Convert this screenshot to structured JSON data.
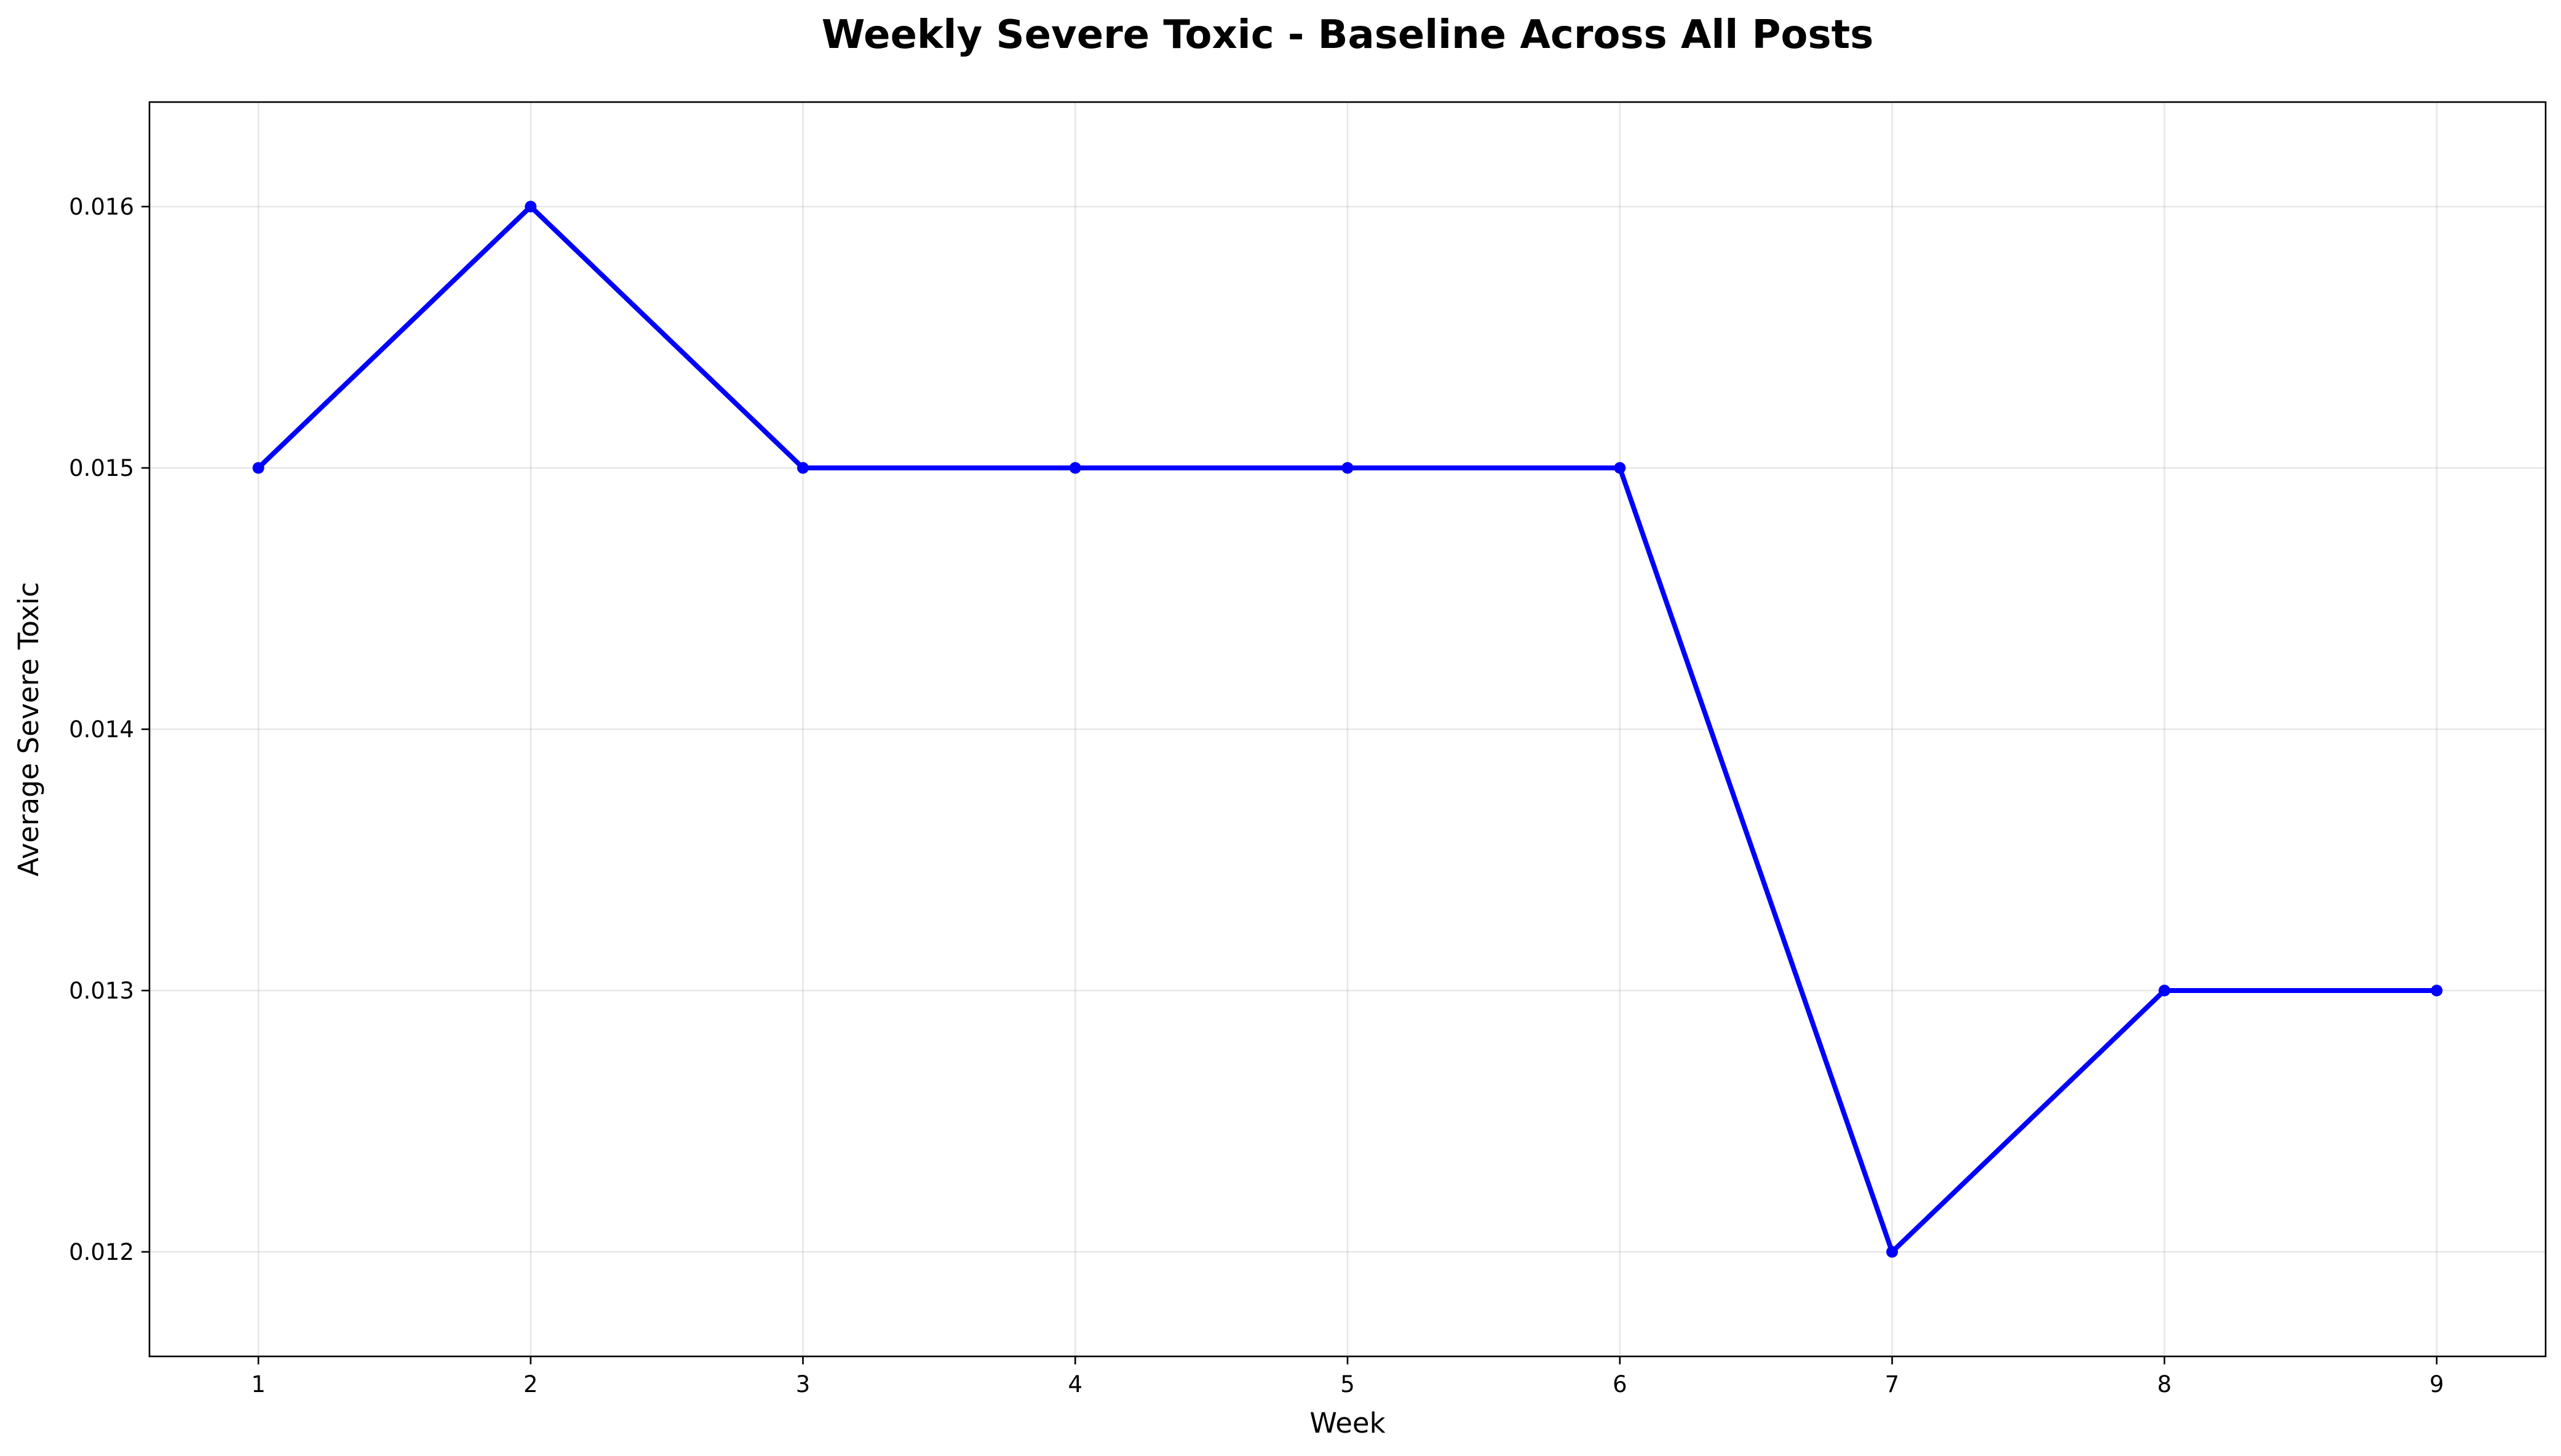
{
  "chart_data": {
    "type": "line",
    "title": "Weekly Severe Toxic - Baseline Across All Posts",
    "xlabel": "Week",
    "ylabel": "Average Severe Toxic",
    "x": [
      1,
      2,
      3,
      4,
      5,
      6,
      7,
      8,
      9
    ],
    "series": [
      {
        "values": [
          0.015,
          0.016,
          0.015,
          0.015,
          0.015,
          0.015,
          0.012,
          0.013,
          0.013
        ],
        "color": "#0000ff",
        "marker": "circle"
      }
    ],
    "xlim": [
      0.6,
      9.4
    ],
    "ylim": [
      0.0116,
      0.0164
    ],
    "xticks": [
      1,
      2,
      3,
      4,
      5,
      6,
      7,
      8,
      9
    ],
    "xtick_labels": [
      "1",
      "2",
      "3",
      "4",
      "5",
      "6",
      "7",
      "8",
      "9"
    ],
    "yticks": [
      0.012,
      0.013,
      0.014,
      0.015,
      0.016
    ],
    "ytick_labels": [
      "0.012",
      "0.013",
      "0.014",
      "0.015",
      "0.016"
    ],
    "grid": true,
    "legend": "none"
  }
}
